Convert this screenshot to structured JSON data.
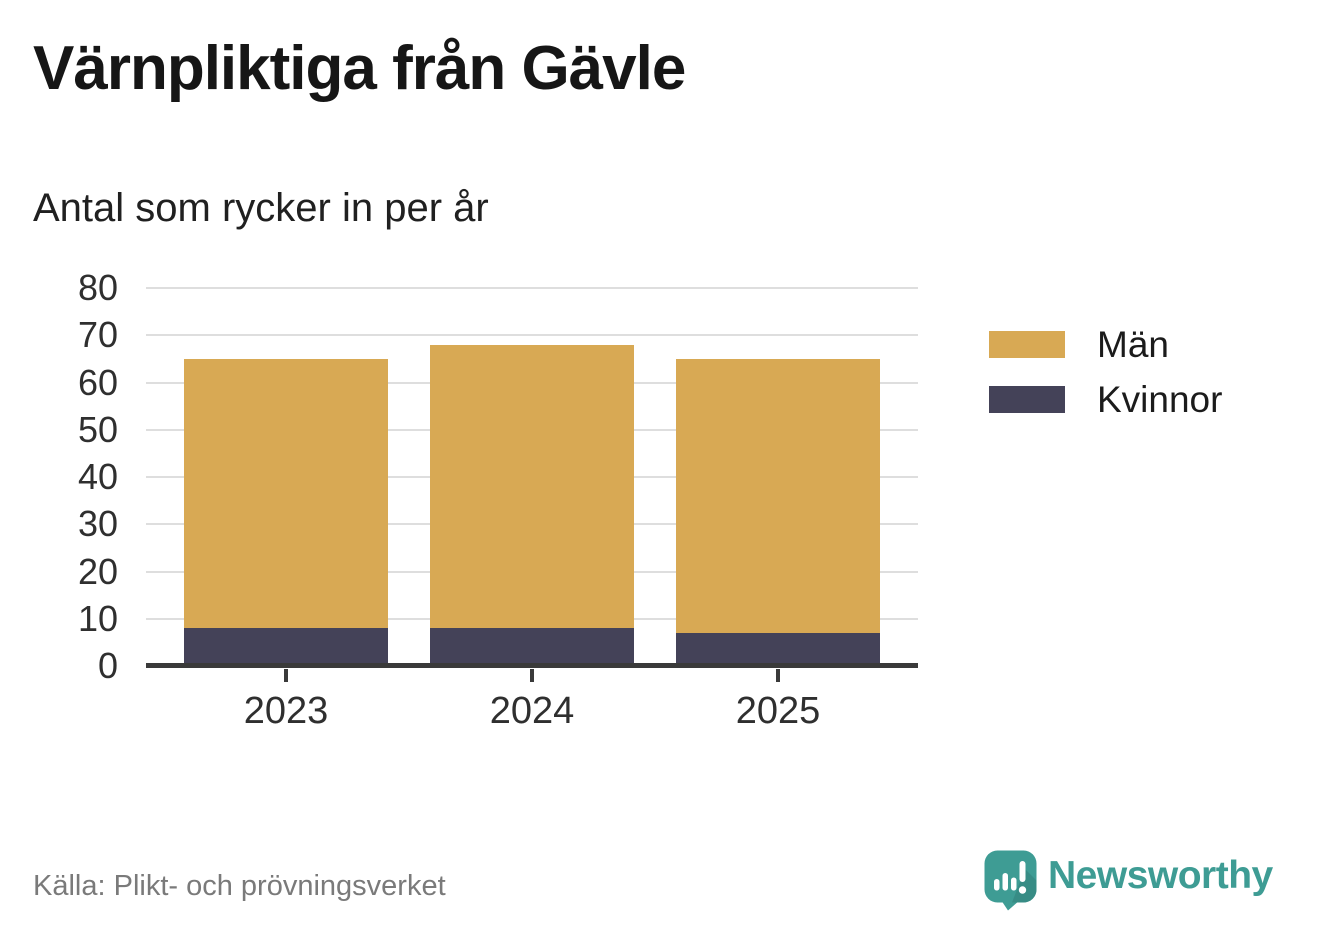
{
  "title": "Värnpliktiga från Gävle",
  "subtitle": "Antal som rycker in per år",
  "source": "Källa: Plikt- och prövningsverket",
  "branding": {
    "name": "Newsworthy",
    "icon": "newsworthy-speech-bubble-chart-icon",
    "teal": "#3e9c94",
    "teal_dark": "#378c85"
  },
  "legend": [
    {
      "label": "Män",
      "color": "#d8a954"
    },
    {
      "label": "Kvinnor",
      "color": "#444258"
    }
  ],
  "colors": {
    "axis": "#3a3a3a",
    "gridline": "#dedede",
    "tick_text": "#2f2f2f",
    "title_text": "#161616",
    "source_text": "#7a7a7a"
  },
  "chart_data": {
    "type": "bar",
    "stacked": true,
    "title": "Värnpliktiga från Gävle",
    "subtitle": "Antal som rycker in per år",
    "categories": [
      "2023",
      "2024",
      "2025"
    ],
    "series": [
      {
        "name": "Kvinnor",
        "color": "#444258",
        "values": [
          8,
          8,
          7
        ]
      },
      {
        "name": "Män",
        "color": "#d8a954",
        "values": [
          57,
          60,
          58
        ]
      }
    ],
    "stacked_totals": [
      65,
      68,
      65
    ],
    "xlabel": "",
    "ylabel": "",
    "ylim": [
      0,
      80
    ],
    "yticks": [
      0,
      10,
      20,
      30,
      40,
      50,
      60,
      70,
      80
    ],
    "grid": true,
    "legend_position": "right"
  }
}
